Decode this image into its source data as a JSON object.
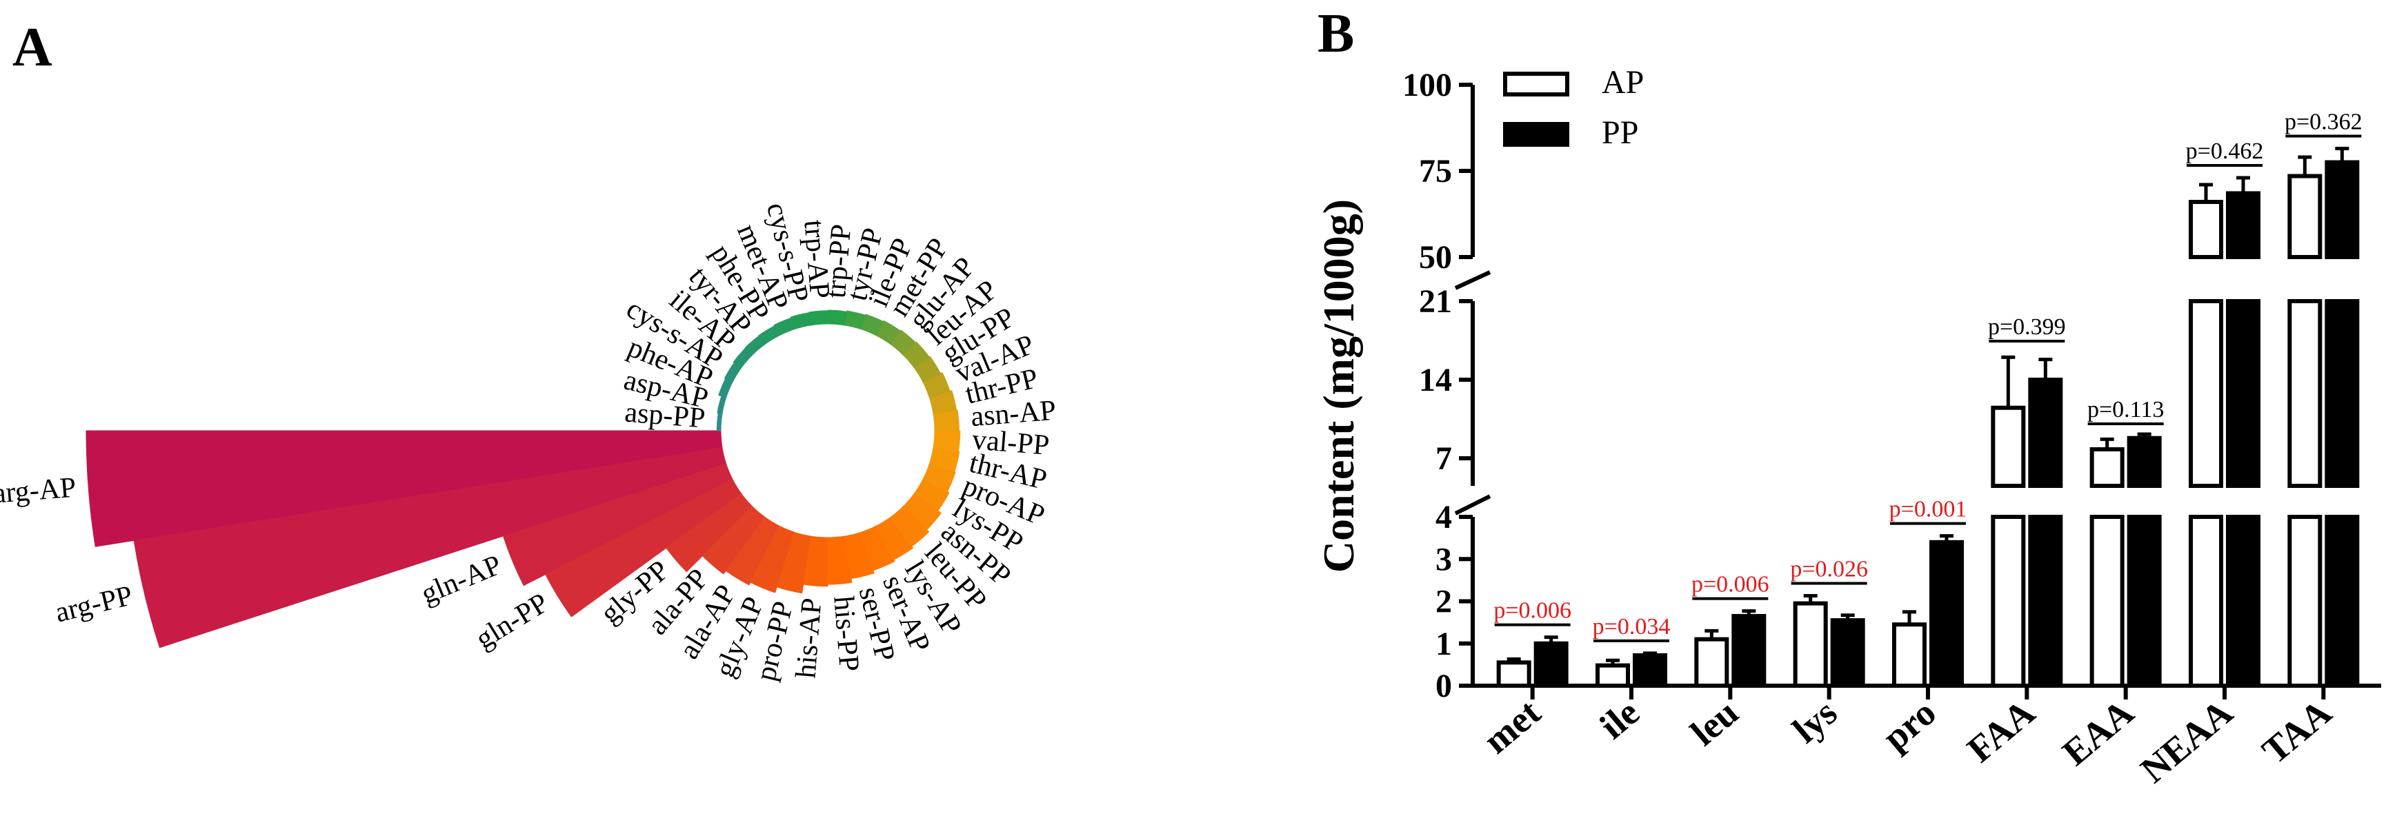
{
  "figure": {
    "panel_a_label": "A",
    "panel_b_label": "B"
  },
  "colors": {
    "ap_fill": "#ffffff",
    "pp_fill": "#000000",
    "axis": "#000000",
    "sig_red": "#e41a1c",
    "circ_start": "#c2124e",
    "circ_mid": "#ff6a00",
    "circ_orange": "#f5a00a",
    "circ_green": "#22a24c",
    "circ_teal": "#2d8c8c"
  },
  "chart_data": [
    {
      "panel": "A",
      "type": "bar",
      "subtype": "circular",
      "title": "",
      "orientation": "counter-clockwise from 9 o'clock",
      "categories": [
        "arg-AP",
        "arg-PP",
        "gln-AP",
        "gln-PP",
        "gly-PP",
        "ala-PP",
        "ala-AP",
        "gly-AP",
        "pro-PP",
        "his-AP",
        "his-PP",
        "ser-PP",
        "ser-AP",
        "lys-AP",
        "leu-PP",
        "asn-PP",
        "lys-PP",
        "pro-AP",
        "thr-AP",
        "val-PP",
        "asn-AP",
        "thr-PP",
        "val-AP",
        "glu-PP",
        "leu-AP",
        "glu-AP",
        "met-PP",
        "ile-PP",
        "tyr-PP",
        "trp-PP",
        "trp-AP",
        "cys-s-PP",
        "met-AP",
        "phe-PP",
        "tyr-AP",
        "ile-AP",
        "cys-s-AP",
        "phe-AP",
        "asp-AP",
        "asp-PP"
      ],
      "values": [
        65.0,
        61.0,
        24.0,
        21.5,
        9.5,
        7.2,
        6.8,
        6.5,
        5.9,
        5.0,
        4.8,
        4.4,
        4.1,
        3.9,
        3.7,
        3.4,
        3.0,
        2.8,
        2.7,
        2.6,
        2.5,
        2.4,
        2.2,
        2.0,
        1.9,
        1.8,
        1.7,
        1.6,
        1.5,
        1.4,
        1.35,
        1.3,
        1.2,
        1.1,
        1.05,
        1.0,
        0.9,
        0.8,
        0.5,
        0.4
      ]
    },
    {
      "panel": "B",
      "type": "bar",
      "title": "",
      "xlabel": "",
      "ylabel": "Content (mg/1000g)",
      "categories": [
        "met",
        "ile",
        "leu",
        "lys",
        "pro",
        "FAA",
        "EAA",
        "NEAA",
        "TAA"
      ],
      "series": [
        {
          "name": "AP",
          "values": [
            0.55,
            0.48,
            1.1,
            1.95,
            1.45,
            11.5,
            7.8,
            66.0,
            73.5
          ],
          "errors": [
            0.08,
            0.12,
            0.2,
            0.18,
            0.3,
            4.5,
            0.9,
            5.0,
            5.5
          ]
        },
        {
          "name": "PP",
          "values": [
            1.0,
            0.72,
            1.65,
            1.55,
            3.4,
            14.0,
            8.8,
            68.5,
            77.5
          ],
          "errors": [
            0.15,
            0.05,
            0.12,
            0.12,
            0.15,
            1.8,
            0.35,
            4.5,
            4.0
          ]
        }
      ],
      "pvalues": [
        "p=0.006",
        "p=0.034",
        "p=0.006",
        "p=0.026",
        "p=0.001",
        "p=0.399",
        "p=0.113",
        "p=0.462",
        "p=0.362"
      ],
      "significant": [
        true,
        true,
        true,
        true,
        true,
        false,
        false,
        false,
        false
      ],
      "axis_segments": [
        {
          "range": [
            0,
            4
          ],
          "ticks": [
            0,
            1,
            2,
            3,
            4
          ]
        },
        {
          "range": [
            4,
            21
          ],
          "ticks": [
            7,
            14,
            21
          ]
        },
        {
          "range": [
            50,
            100
          ],
          "ticks": [
            50,
            75,
            100
          ]
        }
      ],
      "legend": {
        "position": "top-left",
        "entries": [
          "AP",
          "PP"
        ]
      }
    }
  ]
}
